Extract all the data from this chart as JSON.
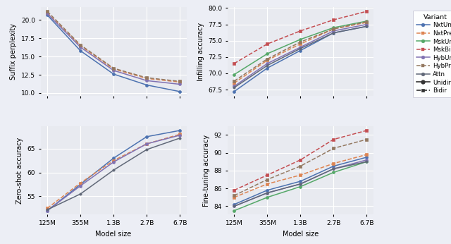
{
  "x_labels": [
    "125M",
    "355M",
    "1.3B",
    "2.7B",
    "6.7B"
  ],
  "x_vals": [
    0,
    1,
    2,
    3,
    4
  ],
  "suffix_perplexity": {
    "NxtUni": [
      20.7,
      15.8,
      12.6,
      11.1,
      10.2
    ],
    "NxtPre": [
      21.0,
      16.5,
      13.3,
      12.0,
      11.5
    ],
    "HybUni": [
      20.9,
      16.3,
      13.1,
      11.7,
      11.2
    ],
    "HybPre": [
      21.2,
      16.6,
      13.4,
      12.1,
      11.6
    ]
  },
  "infilling_accuracy": {
    "NxtUni": [
      67.2,
      70.8,
      73.5,
      76.2,
      77.2
    ],
    "NxtPre": [
      68.5,
      72.0,
      74.5,
      76.8,
      77.8
    ],
    "MskUni": [
      69.8,
      73.0,
      75.2,
      77.0,
      78.0
    ],
    "MskBi": [
      71.5,
      74.5,
      76.5,
      78.2,
      79.5
    ],
    "HybUni": [
      68.0,
      71.5,
      74.0,
      76.5,
      77.5
    ],
    "HybPre": [
      68.8,
      72.2,
      74.8,
      76.8,
      77.9
    ],
    "Attn": [
      67.8,
      71.2,
      73.8,
      76.2,
      77.2
    ]
  },
  "zero_shot_accuracy": {
    "NxtUni": [
      52.0,
      57.5,
      63.0,
      67.5,
      68.8
    ],
    "NxtPre": [
      52.5,
      57.8,
      62.5,
      66.0,
      68.0
    ],
    "HybUni": [
      52.0,
      57.2,
      62.2,
      66.0,
      67.8
    ],
    "Attn": [
      52.2,
      55.5,
      60.5,
      64.8,
      67.2
    ]
  },
  "fine_tuning_accuracy": {
    "NxtUni": [
      84.2,
      85.8,
      86.8,
      88.5,
      89.5
    ],
    "NxtPre": [
      85.0,
      86.5,
      87.5,
      88.8,
      89.8
    ],
    "MskUni": [
      83.5,
      85.0,
      86.2,
      87.8,
      89.0
    ],
    "MskBi": [
      85.8,
      87.5,
      89.2,
      91.5,
      92.5
    ],
    "HybUni": [
      84.0,
      85.5,
      86.5,
      88.2,
      89.2
    ],
    "HybPre": [
      85.2,
      87.0,
      88.5,
      90.5,
      91.5
    ],
    "Attn": [
      84.0,
      85.5,
      86.5,
      88.2,
      89.0
    ]
  },
  "variant_colors": {
    "NxtUni": "#4c72b0",
    "NxtPre": "#dd8452",
    "MskUni": "#55a868",
    "MskBi": "#c44e52",
    "HybUni": "#8172b2",
    "HybPre": "#937860",
    "Attn": "#8172b2"
  },
  "bidir_variants": [
    "NxtPre",
    "MskBi",
    "HybPre"
  ],
  "background_color": "#e8eaf0",
  "fig_facecolor": "#eceef5"
}
